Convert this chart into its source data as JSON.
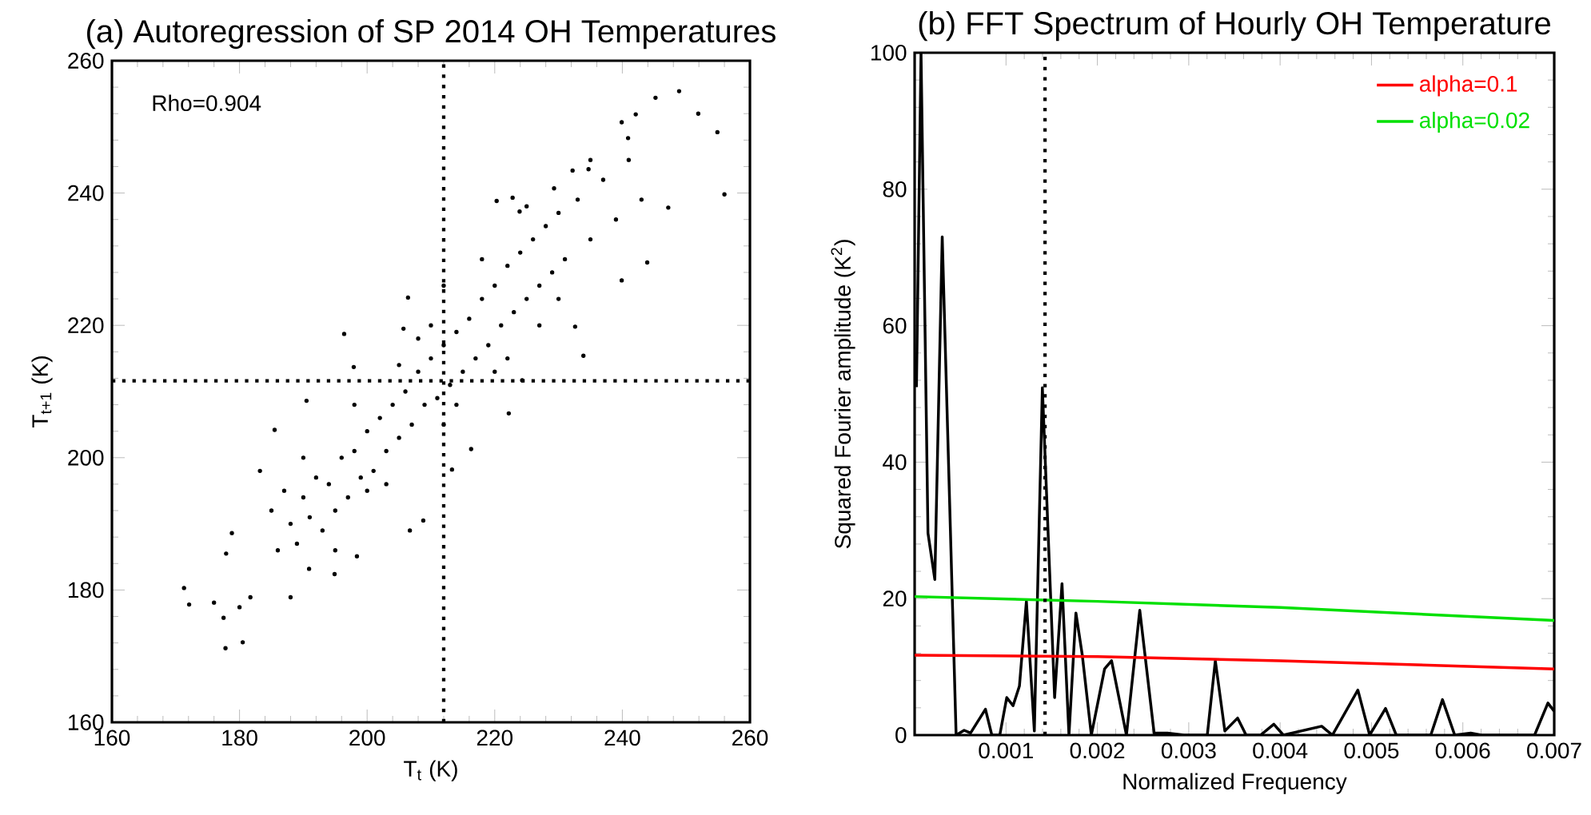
{
  "chart_data": [
    {
      "type": "scatter",
      "title": "(a) Autoregression of SP 2014 OH Temperatures",
      "xlabel": "T$_{t}$ (K)",
      "ylabel": "T$_{t+1}$ (K)",
      "annotations": [
        "Rho=0.904"
      ],
      "xlim": [
        160,
        260
      ],
      "ylim": [
        160,
        260
      ],
      "xticks": [
        160,
        180,
        200,
        220,
        240,
        260
      ],
      "yticks": [
        160,
        180,
        200,
        220,
        240,
        260
      ],
      "ref_lines": [
        {
          "axis": "x",
          "value": 212.0,
          "line_style": "dotted"
        },
        {
          "axis": "y",
          "value": 211.6,
          "line_style": "dotted"
        }
      ],
      "series": [
        {
          "color": "#000000",
          "x": [
            171.3,
            172.1,
            177.8,
            180.5,
            177.5,
            176.0,
            177.9,
            178.8,
            185.5,
            183.2,
            190.5,
            196.4,
            197.9,
            206.4,
            205.7,
            212.0,
            220.3,
            222.8,
            223.9,
            229.3,
            232.2,
            234.7,
            239.9,
            240.9,
            242.1,
            245.2,
            248.9,
            251.9,
            254.9,
            256.0,
            247.2,
            243.9,
            239.9,
            233.9,
            232.6,
            224.3,
            222.2,
            216.3,
            213.3,
            208.8,
            206.7,
            198.4,
            194.9,
            190.9,
            188.0,
            181.7,
            180.0,
            185,
            186,
            187,
            188,
            189,
            190,
            191,
            192,
            193,
            194,
            195,
            196,
            197,
            198,
            199,
            200,
            201,
            202,
            203,
            204,
            205,
            206,
            207,
            208,
            209,
            210,
            211,
            212,
            213,
            214,
            215,
            216,
            217,
            218,
            219,
            220,
            221,
            222,
            223,
            224,
            225,
            226,
            227,
            228,
            229,
            230,
            231,
            233,
            235,
            237,
            239,
            241,
            243,
            210,
            214,
            220,
            205,
            200,
            195,
            190,
            225,
            230,
            235,
            218,
            212,
            208,
            203,
            198,
            222,
            227
          ],
          "values": [
            180.3,
            177.8,
            171.2,
            172.1,
            175.8,
            178.1,
            185.5,
            188.6,
            204.2,
            198.0,
            208.6,
            218.7,
            213.7,
            224.2,
            219.5,
            226.0,
            238.8,
            239.3,
            237.2,
            240.7,
            243.4,
            243.6,
            250.7,
            248.3,
            251.9,
            254.4,
            255.4,
            252.0,
            249.2,
            239.8,
            237.8,
            229.5,
            226.8,
            215.4,
            219.8,
            211.7,
            206.7,
            201.3,
            198.2,
            190.5,
            189.0,
            185.1,
            182.4,
            183.2,
            178.9,
            178.9,
            177.4,
            192,
            186,
            195,
            190,
            187,
            194,
            191,
            197,
            189,
            196,
            192,
            200,
            194,
            201,
            197,
            204,
            198,
            206,
            201,
            208,
            203,
            210,
            205,
            213,
            208,
            215,
            209,
            217,
            211,
            219,
            213,
            221,
            215,
            224,
            217,
            226,
            220,
            229,
            222,
            231,
            224,
            233,
            226,
            235,
            228,
            237,
            230,
            239,
            233,
            242,
            236,
            245,
            239,
            220,
            208,
            213,
            214,
            195,
            186,
            200,
            238,
            224,
            245,
            230,
            205,
            218,
            196,
            208,
            215,
            220
          ]
        }
      ]
    },
    {
      "type": "line",
      "title": "(b) FFT Spectrum of Hourly OH Temperature",
      "xlabel": "Normalized Frequency",
      "ylabel": "Squared Fourier amplitude (K$^{2}$)",
      "xlim": [
        0,
        0.007
      ],
      "ylim": [
        0,
        100
      ],
      "xticks": [
        0.001,
        0.002,
        0.003,
        0.004,
        0.005,
        0.006,
        0.007
      ],
      "yticks": [
        0,
        20,
        40,
        60,
        80,
        100
      ],
      "legend": "top right",
      "ref_lines": [
        {
          "axis": "x",
          "value": 0.001427,
          "line_style": "dotted"
        }
      ],
      "series": [
        {
          "color": "#000000",
          "x": [
            2e-05,
            7e-05,
            0.000146,
            0.000221,
            0.000302,
            0.000454,
            0.000542,
            0.000612,
            0.000775,
            0.000845,
            0.000932,
            0.001008,
            0.001077,
            0.001147,
            0.001223,
            0.00131,
            0.001398,
            0.001532,
            0.001613,
            0.001689,
            0.001765,
            0.001835,
            0.001934,
            0.002079,
            0.002155,
            0.002318,
            0.002464,
            0.002621,
            0.002766,
            0.002953,
            0.003203,
            0.003291,
            0.003395,
            0.003535,
            0.003628,
            0.003786,
            0.003931,
            0.004036,
            0.004455,
            0.004572,
            0.004851,
            0.00498,
            0.005154,
            0.005271,
            0.005649,
            0.005777,
            0.005911,
            0.006086,
            0.006203,
            0.006785,
            0.006931,
            0.007
          ],
          "values": [
            51,
            100,
            29.6,
            22.8,
            73,
            0,
            0.7,
            0.3,
            3.8,
            0,
            0,
            5.5,
            4.3,
            7.2,
            19.6,
            0.6,
            50.9,
            5.5,
            22.2,
            0,
            17.9,
            11.7,
            0,
            9.7,
            10.9,
            0,
            18.3,
            0.3,
            0.3,
            0,
            0,
            10.9,
            0.6,
            2.5,
            0,
            0,
            1.6,
            0,
            1.3,
            0,
            6.6,
            0,
            3.9,
            0,
            0,
            5.2,
            0,
            0.3,
            0,
            0,
            4.7,
            3.5
          ]
        },
        {
          "name": "alpha=0.1",
          "color": "#ff0000",
          "x": [
            0,
            0.002,
            0.004,
            0.007
          ],
          "values": [
            11.7,
            11.5,
            10.9,
            9.7
          ]
        },
        {
          "name": "alpha=0.02",
          "color": "#00e000",
          "x": [
            0,
            0.002,
            0.004,
            0.007
          ],
          "values": [
            20.3,
            19.6,
            18.7,
            16.8
          ]
        }
      ]
    }
  ]
}
